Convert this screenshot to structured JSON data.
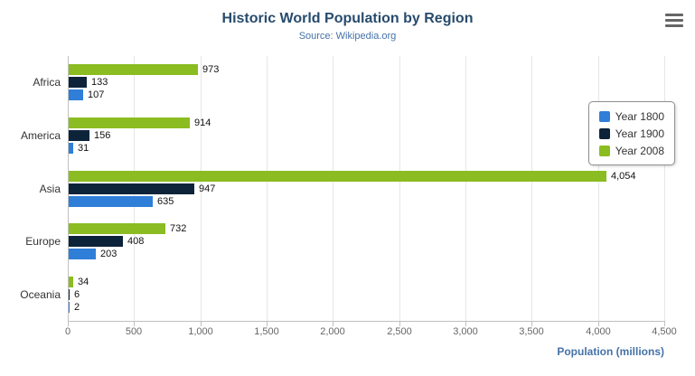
{
  "toolbar": {
    "export_menu_icon": "hamburger-menu-icon"
  },
  "chart_data": {
    "type": "bar",
    "title": "Historic World Population by Region",
    "subtitle": "Source: Wikipedia.org",
    "categories": [
      "Africa",
      "America",
      "Asia",
      "Europe",
      "Oceania"
    ],
    "series": [
      {
        "name": "Year 1800",
        "color": "#2f7ed8",
        "values": [
          107,
          31,
          635,
          203,
          2
        ]
      },
      {
        "name": "Year 1900",
        "color": "#0d233a",
        "values": [
          133,
          156,
          947,
          408,
          6
        ]
      },
      {
        "name": "Year 2008",
        "color": "#8bbc21",
        "values": [
          973,
          914,
          4054,
          732,
          34
        ]
      }
    ],
    "xlabel": "Population (millions)",
    "xlim": [
      0,
      4500
    ],
    "tick_interval": 500,
    "tick_labels": [
      "0",
      "500",
      "1,000",
      "1,500",
      "2,000",
      "2,500",
      "3,000",
      "3,500",
      "4,000",
      "4,500"
    ],
    "legend_position": "right",
    "legend_entries": [
      "Year 1800",
      "Year 1900",
      "Year 2008"
    ],
    "grid": true,
    "bar_display_order_top_to_bottom": [
      "Year 2008",
      "Year 1900",
      "Year 1800"
    ]
  }
}
